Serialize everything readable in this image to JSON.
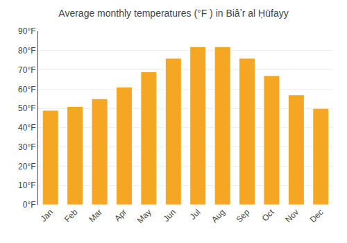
{
  "chart_data": {
    "type": "bar",
    "title": "Average monthly temperatures (°F ) in Biâʼr al Ḥūfayy",
    "categories": [
      "Jan",
      "Feb",
      "Mar",
      "Apr",
      "May",
      "Jun",
      "Jul",
      "Aug",
      "Sep",
      "Oct",
      "Nov",
      "Dec"
    ],
    "values": [
      49,
      51,
      55,
      61,
      69,
      76,
      82,
      82,
      76,
      67,
      57,
      50
    ],
    "color": "#F5A623",
    "ylim": [
      0,
      90
    ],
    "yticks": [
      {
        "value": 0,
        "label": "0°F"
      },
      {
        "value": 10,
        "label": "10°F"
      },
      {
        "value": 20,
        "label": "20°F"
      },
      {
        "value": 30,
        "label": "30°F"
      },
      {
        "value": 40,
        "label": "40°F"
      },
      {
        "value": 50,
        "label": "50°F"
      },
      {
        "value": 60,
        "label": "60°F"
      },
      {
        "value": 70,
        "label": "70°F"
      },
      {
        "value": 80,
        "label": "80°F"
      },
      {
        "value": 90,
        "label": "90°F"
      }
    ],
    "grid": true
  }
}
